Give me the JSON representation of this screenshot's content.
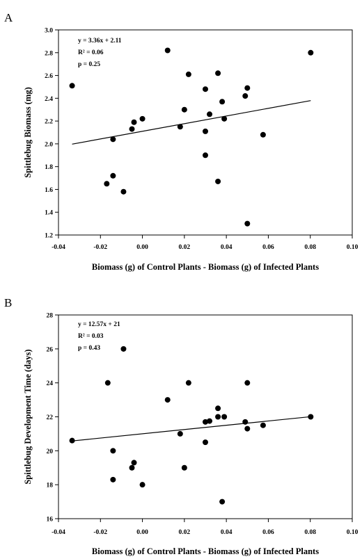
{
  "chart_data": [
    {
      "panel": "A",
      "type": "scatter",
      "xlabel": "Biomass (g) of Control Plants - Biomass (g) of Infected Plants",
      "ylabel": "Spittlebug Biomass (mg)",
      "xlim": [
        -0.04,
        0.1
      ],
      "ylim": [
        1.2,
        3.0
      ],
      "xticks": [
        "-0.04",
        "-0.02",
        "0.00",
        "0.02",
        "0.04",
        "0.06",
        "0.08",
        "0.10"
      ],
      "yticks": [
        "1.2",
        "1.4",
        "1.6",
        "1.8",
        "2.0",
        "2.2",
        "2.4",
        "2.6",
        "2.8",
        "3.0"
      ],
      "annotation": [
        "y = 3.36x + 2.11",
        "R² = 0.06",
        "p = 0.25"
      ],
      "fit": {
        "slope": 3.36,
        "intercept": 2.11,
        "x_range": [
          -0.0335,
          0.0802
        ]
      },
      "points": [
        {
          "x": -0.0335,
          "y": 2.51
        },
        {
          "x": -0.014,
          "y": 2.04
        },
        {
          "x": -0.014,
          "y": 1.72
        },
        {
          "x": -0.017,
          "y": 1.65
        },
        {
          "x": -0.009,
          "y": 1.58
        },
        {
          "x": -0.005,
          "y": 2.13
        },
        {
          "x": -0.004,
          "y": 2.19
        },
        {
          "x": 0.0,
          "y": 2.22
        },
        {
          "x": 0.012,
          "y": 2.82
        },
        {
          "x": 0.018,
          "y": 2.15
        },
        {
          "x": 0.02,
          "y": 2.3
        },
        {
          "x": 0.022,
          "y": 2.61
        },
        {
          "x": 0.03,
          "y": 2.48
        },
        {
          "x": 0.03,
          "y": 2.11
        },
        {
          "x": 0.03,
          "y": 1.9
        },
        {
          "x": 0.032,
          "y": 2.26
        },
        {
          "x": 0.036,
          "y": 2.62
        },
        {
          "x": 0.036,
          "y": 1.67
        },
        {
          "x": 0.038,
          "y": 2.37
        },
        {
          "x": 0.039,
          "y": 2.22
        },
        {
          "x": 0.049,
          "y": 2.42
        },
        {
          "x": 0.05,
          "y": 2.49
        },
        {
          "x": 0.05,
          "y": 1.3
        },
        {
          "x": 0.0575,
          "y": 2.08
        },
        {
          "x": 0.0802,
          "y": 2.8
        }
      ]
    },
    {
      "panel": "B",
      "type": "scatter",
      "xlabel": "Biomass (g) of Control Plants - Biomass (g) of Infected Plants",
      "ylabel": "Spittlebug Development Time (days)",
      "xlim": [
        -0.04,
        0.1
      ],
      "ylim": [
        16,
        28
      ],
      "xticks": [
        "-0.04",
        "-0.02",
        "0.00",
        "0.02",
        "0.04",
        "0.06",
        "0.08",
        "0.10"
      ],
      "yticks": [
        "16",
        "18",
        "20",
        "22",
        "24",
        "26",
        "28"
      ],
      "annotation": [
        "y = 12.57x + 21",
        "R² = 0.03",
        "p = 0.43"
      ],
      "fit": {
        "slope": 12.57,
        "intercept": 21.0,
        "x_range": [
          -0.0335,
          0.0802
        ]
      },
      "points": [
        {
          "x": -0.0335,
          "y": 20.6
        },
        {
          "x": -0.0165,
          "y": 24.0
        },
        {
          "x": -0.009,
          "y": 26.0
        },
        {
          "x": -0.014,
          "y": 20.0
        },
        {
          "x": -0.014,
          "y": 18.3
        },
        {
          "x": -0.004,
          "y": 19.3
        },
        {
          "x": -0.005,
          "y": 19.0
        },
        {
          "x": 0.0,
          "y": 18.0
        },
        {
          "x": 0.012,
          "y": 23.0
        },
        {
          "x": 0.018,
          "y": 21.0
        },
        {
          "x": 0.02,
          "y": 19.0
        },
        {
          "x": 0.022,
          "y": 24.0
        },
        {
          "x": 0.03,
          "y": 21.7
        },
        {
          "x": 0.032,
          "y": 21.75
        },
        {
          "x": 0.03,
          "y": 20.5
        },
        {
          "x": 0.036,
          "y": 22.5
        },
        {
          "x": 0.036,
          "y": 22.0
        },
        {
          "x": 0.039,
          "y": 22.0
        },
        {
          "x": 0.038,
          "y": 17.0
        },
        {
          "x": 0.05,
          "y": 24.0
        },
        {
          "x": 0.049,
          "y": 21.7
        },
        {
          "x": 0.05,
          "y": 21.3
        },
        {
          "x": 0.0575,
          "y": 21.5
        },
        {
          "x": 0.0802,
          "y": 22.0
        }
      ]
    }
  ],
  "colors": {
    "marker": "#000000",
    "line": "#000000",
    "axis": "#000000"
  }
}
